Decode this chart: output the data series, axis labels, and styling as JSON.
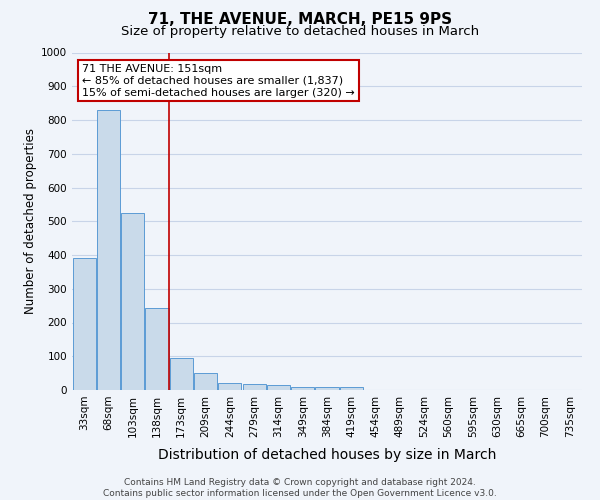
{
  "title": "71, THE AVENUE, MARCH, PE15 9PS",
  "subtitle": "Size of property relative to detached houses in March",
  "xlabel": "Distribution of detached houses by size in March",
  "ylabel": "Number of detached properties",
  "categories": [
    "33sqm",
    "68sqm",
    "103sqm",
    "138sqm",
    "173sqm",
    "209sqm",
    "244sqm",
    "279sqm",
    "314sqm",
    "349sqm",
    "384sqm",
    "419sqm",
    "454sqm",
    "489sqm",
    "524sqm",
    "560sqm",
    "595sqm",
    "630sqm",
    "665sqm",
    "700sqm",
    "735sqm"
  ],
  "values": [
    390,
    830,
    525,
    242,
    95,
    50,
    22,
    18,
    14,
    10,
    8,
    8,
    0,
    0,
    0,
    0,
    0,
    0,
    0,
    0,
    0
  ],
  "bar_color": "#c9daea",
  "bar_edge_color": "#5b9bd5",
  "ref_line_color": "#c00000",
  "annotation_text": "71 THE AVENUE: 151sqm\n← 85% of detached houses are smaller (1,837)\n15% of semi-detached houses are larger (320) →",
  "annotation_box_color": "#ffffff",
  "annotation_box_edge": "#c00000",
  "ylim": [
    0,
    1000
  ],
  "yticks": [
    0,
    100,
    200,
    300,
    400,
    500,
    600,
    700,
    800,
    900,
    1000
  ],
  "background_color": "#f0f4fa",
  "grid_color": "#c8d4e8",
  "footer": "Contains HM Land Registry data © Crown copyright and database right 2024.\nContains public sector information licensed under the Open Government Licence v3.0.",
  "title_fontsize": 11,
  "subtitle_fontsize": 9.5,
  "xlabel_fontsize": 10,
  "ylabel_fontsize": 8.5,
  "tick_fontsize": 7.5,
  "annot_fontsize": 8,
  "footer_fontsize": 6.5
}
